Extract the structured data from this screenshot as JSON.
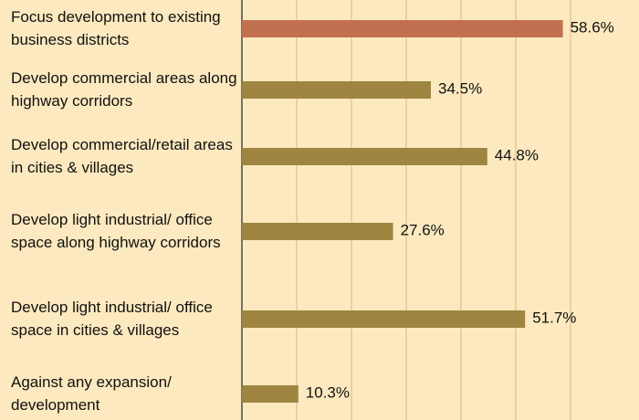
{
  "chart_data": {
    "type": "barh",
    "categories": [
      "Focus development to existing business districts",
      "Develop commercial areas along highway corridors",
      "Develop commercial/retail areas in cities & villages",
      "Develop light industrial/ office space along highway corridors",
      "Develop light industrial/ office space in cities & villages",
      "Against any expansion/ development"
    ],
    "values": [
      58.6,
      34.5,
      44.8,
      27.6,
      51.7,
      10.3
    ],
    "value_labels": [
      "58.6%",
      "34.5%",
      "44.8%",
      "27.6%",
      "51.7%",
      "10.3%"
    ],
    "colors": [
      "#c27150",
      "#9e8540",
      "#9e8540",
      "#9e8540",
      "#9e8540",
      "#9e8540"
    ],
    "xlim": [
      0,
      72.5
    ],
    "xticks": [
      0,
      10,
      20,
      30,
      40,
      50,
      60
    ],
    "grid": true
  }
}
